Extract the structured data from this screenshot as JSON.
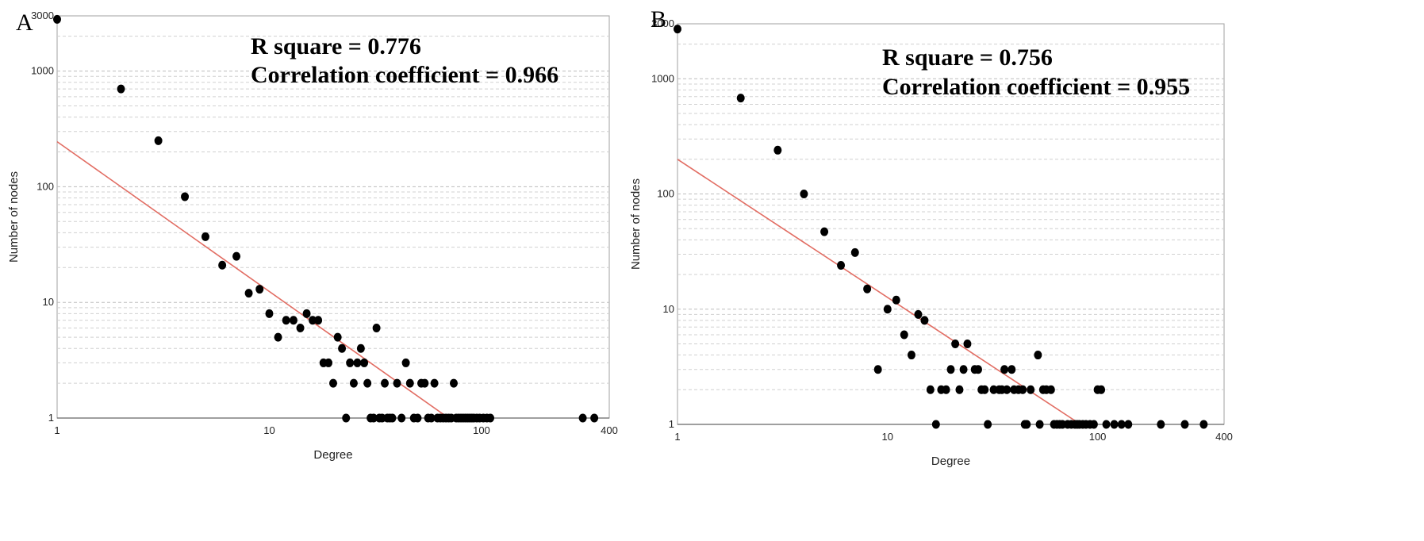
{
  "chart_data": [
    {
      "panel_label": "A",
      "type": "scatter",
      "xscale": "log",
      "yscale": "log",
      "xlim": [
        1,
        400
      ],
      "ylim": [
        1,
        3000
      ],
      "xticks": [
        "1",
        "10",
        "100",
        "400"
      ],
      "yticks": [
        "1",
        "10",
        "100",
        "1000",
        "3000"
      ],
      "xlabel": "Degree",
      "ylabel": "Number of nodes",
      "annotations": [
        "R square = 0.776",
        "Correlation coefficient = 0.966"
      ],
      "fit_line": {
        "x": [
          1,
          70
        ],
        "y": [
          245,
          1
        ],
        "color": "#e26d63"
      },
      "points": {
        "x": [
          1,
          2,
          3,
          4,
          5,
          6,
          7,
          8,
          9,
          10,
          11,
          12,
          13,
          14,
          15,
          16,
          17,
          18,
          19,
          20,
          21,
          22,
          23,
          24,
          25,
          26,
          27,
          28,
          29,
          30,
          31,
          32,
          33,
          34,
          35,
          36,
          37,
          38,
          40,
          42,
          44,
          46,
          48,
          50,
          52,
          54,
          56,
          58,
          60,
          62,
          64,
          66,
          68,
          70,
          72,
          74,
          76,
          78,
          80,
          82,
          84,
          86,
          88,
          90,
          92,
          95,
          98,
          102,
          106,
          110,
          300,
          340
        ],
        "y": [
          2800,
          700,
          250,
          82,
          37,
          21,
          25,
          12,
          13,
          8,
          5,
          7,
          7,
          6,
          8,
          7,
          7,
          3,
          3,
          2,
          5,
          4,
          1,
          3,
          2,
          3,
          4,
          3,
          2,
          1,
          1,
          6,
          1,
          1,
          2,
          1,
          1,
          1,
          2,
          1,
          3,
          2,
          1,
          1,
          2,
          2,
          1,
          1,
          2,
          1,
          1,
          1,
          1,
          1,
          1,
          2,
          1,
          1,
          1,
          1,
          1,
          1,
          1,
          1,
          1,
          1,
          1,
          1,
          1,
          1,
          1,
          1
        ]
      }
    },
    {
      "panel_label": "B",
      "type": "scatter",
      "xscale": "log",
      "yscale": "log",
      "xlim": [
        1,
        400
      ],
      "ylim": [
        1,
        3000
      ],
      "xticks": [
        "1",
        "10",
        "100",
        "400"
      ],
      "yticks": [
        "1",
        "10",
        "100",
        "1000",
        "3000"
      ],
      "xlabel": "Degree",
      "ylabel": "Number of nodes",
      "annotations": [
        "R square = 0.756",
        "Correlation coefficient = 0.955"
      ],
      "fit_line": {
        "x": [
          1,
          83
        ],
        "y": [
          200,
          1
        ],
        "color": "#e26d63"
      },
      "points": {
        "x": [
          1,
          2,
          3,
          4,
          5,
          6,
          7,
          8,
          9,
          10,
          11,
          12,
          13,
          14,
          15,
          16,
          17,
          18,
          19,
          20,
          21,
          22,
          23,
          24,
          26,
          27,
          28,
          29,
          30,
          32,
          34,
          35,
          36,
          37,
          39,
          40,
          42,
          44,
          45,
          46,
          48,
          52,
          53,
          55,
          57,
          60,
          62,
          64,
          66,
          68,
          72,
          75,
          78,
          80,
          82,
          85,
          88,
          92,
          96,
          100,
          104,
          110,
          120,
          130,
          140,
          200,
          260,
          320
        ],
        "y": [
          2700,
          680,
          240,
          100,
          47,
          24,
          31,
          15,
          3,
          10,
          12,
          6,
          4,
          9,
          8,
          2,
          1,
          2,
          2,
          3,
          5,
          2,
          3,
          5,
          3,
          3,
          2,
          2,
          1,
          2,
          2,
          2,
          3,
          2,
          3,
          2,
          2,
          2,
          1,
          1,
          2,
          4,
          1,
          2,
          2,
          2,
          1,
          1,
          1,
          1,
          1,
          1,
          1,
          1,
          1,
          1,
          1,
          1,
          1,
          2,
          2,
          1,
          1,
          1,
          1,
          1,
          1,
          1
        ]
      }
    }
  ]
}
